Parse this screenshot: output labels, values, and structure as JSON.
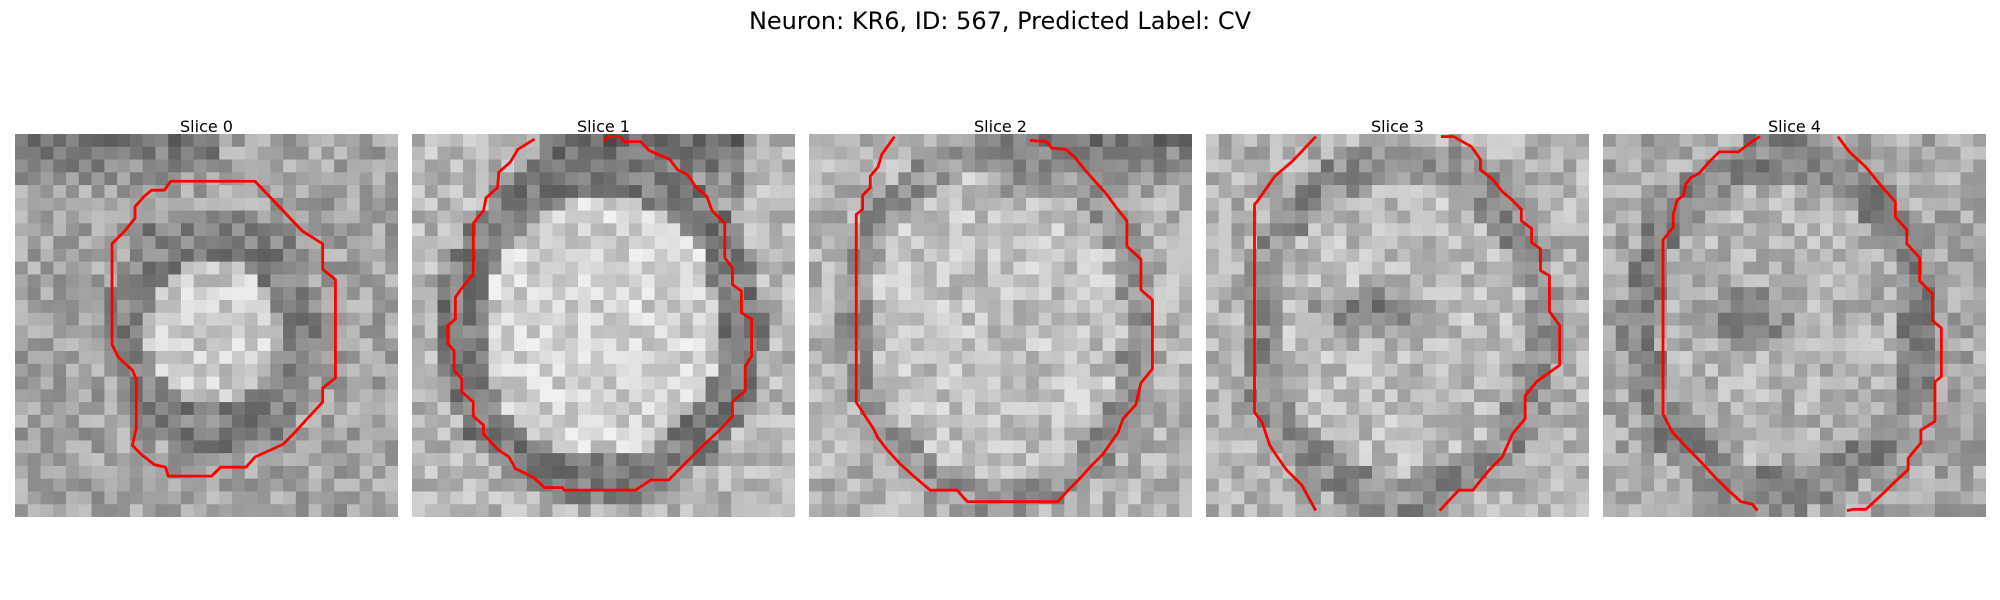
{
  "figure": {
    "title": "Neuron: KR6, ID: 567, Predicted Label: CV",
    "contour_color": "#ff0000",
    "colormap": "gray",
    "slices": [
      {
        "title": "Slice 0"
      },
      {
        "title": "Slice 1"
      },
      {
        "title": "Slice 2"
      },
      {
        "title": "Slice 3"
      },
      {
        "title": "Slice 4"
      }
    ]
  }
}
